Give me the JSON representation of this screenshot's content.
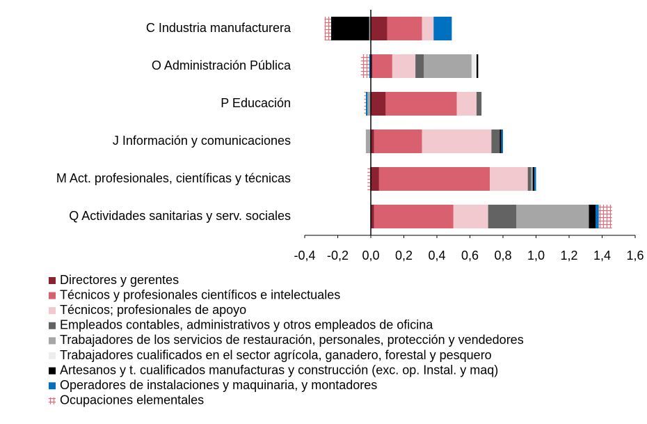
{
  "chart_data": {
    "type": "stacked-barh",
    "categories": [
      "C Industria manufacturera",
      "O Administración Pública",
      "P Educación",
      "J Información y comunicaciones",
      "M Act. profesionales, científicas y técnicas",
      "Q Actividades sanitarias y serv. sociales"
    ],
    "series": [
      {
        "name": "Directores y gerentes",
        "color": "#8b2232",
        "values": [
          0.1,
          0.01,
          0.09,
          0.02,
          0.05,
          0.02
        ]
      },
      {
        "name": "Técnicos y profesionales científicos e intelectuales",
        "color": "#d9606e",
        "values": [
          0.21,
          0.12,
          0.43,
          0.29,
          0.67,
          0.48
        ]
      },
      {
        "name": "Técnicos; profesionales de apoyo",
        "color": "#f2c9cf",
        "values": [
          0.07,
          0.14,
          0.12,
          0.42,
          0.23,
          0.21
        ]
      },
      {
        "name": "Empleados contables, administrativos y otros empleados de oficina",
        "color": "#636363",
        "values": [
          0,
          0.05,
          0.03,
          0.05,
          0.02,
          0.17
        ]
      },
      {
        "name": "Trabajadores de los servicios de restauración, personales, protección y vendedores",
        "color": "#a6a6a6",
        "values": [
          -0.01,
          0.29,
          -0.02,
          -0.03,
          0.01,
          0.44
        ]
      },
      {
        "name": "Trabajadores cualificados en el sector agrícola, ganadero, forestal y pesquero",
        "color": "#ededed",
        "values": [
          0,
          0.03,
          0,
          0,
          0,
          0
        ]
      },
      {
        "name": "Artesanos y t. cualificados manufacturas y construcción (exc. op. Instal. y maq)",
        "color": "#000000",
        "values": [
          -0.23,
          0.01,
          0,
          0.01,
          0.01,
          0.04
        ]
      },
      {
        "name": "Operadores de instalaciones y maquinaria, y montadores",
        "color": "#0070c0",
        "values": [
          0.11,
          -0.01,
          -0.01,
          0.01,
          0.01,
          0.02
        ]
      },
      {
        "name": "Ocupaciones elementales",
        "color": "#e06c7a",
        "hatch": true,
        "values": [
          -0.04,
          -0.05,
          -0.01,
          0,
          -0.02,
          0.08
        ]
      }
    ],
    "xlim": [
      -0.4,
      1.6
    ],
    "xticks": [
      {
        "value": -0.4,
        "label": "-0,4"
      },
      {
        "value": -0.2,
        "label": "-0,2"
      },
      {
        "value": 0,
        "label": "0,0"
      },
      {
        "value": 0.2,
        "label": "0,2"
      },
      {
        "value": 0.4,
        "label": "0,4"
      },
      {
        "value": 0.6,
        "label": "0,6"
      },
      {
        "value": 0.8,
        "label": "0,8"
      },
      {
        "value": 1.0,
        "label": "1,0"
      },
      {
        "value": 1.2,
        "label": "1,2"
      },
      {
        "value": 1.4,
        "label": "1,4"
      },
      {
        "value": 1.6,
        "label": "1,6"
      }
    ]
  }
}
